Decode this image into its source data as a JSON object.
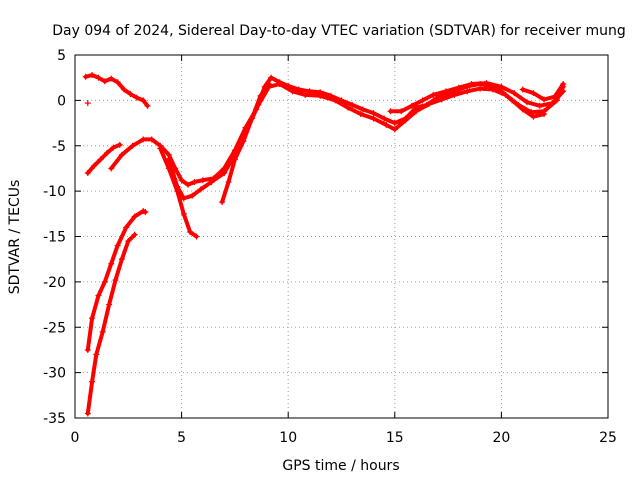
{
  "chart_data": {
    "type": "scatter",
    "title": "Day 094 of 2024, Sidereal Day-to-day VTEC variation (SDTVAR) for receiver mung",
    "xlabel": "GPS time / hours",
    "ylabel": "SDTVAR / TECUs",
    "xlim": [
      0,
      25
    ],
    "ylim": [
      -35,
      5
    ],
    "xticks": [
      0,
      5,
      10,
      15,
      20,
      25
    ],
    "yticks": [
      5,
      0,
      -5,
      -10,
      -15,
      -20,
      -25,
      -30,
      -35
    ],
    "grid": true,
    "color": "#ff0000",
    "series": [
      {
        "name": "arc-top-left",
        "points": [
          [
            0.5,
            2.6
          ],
          [
            0.8,
            2.8
          ],
          [
            1.1,
            2.5
          ],
          [
            1.4,
            2.1
          ],
          [
            1.7,
            2.4
          ],
          [
            2.0,
            2.0
          ],
          [
            2.3,
            1.2
          ],
          [
            2.6,
            0.7
          ],
          [
            2.9,
            0.3
          ],
          [
            3.2,
            0.0
          ],
          [
            3.4,
            -0.6
          ]
        ]
      },
      {
        "name": "isolated-points",
        "points": [
          [
            0.6,
            -0.3
          ]
        ]
      },
      {
        "name": "arc-left-middle",
        "points": [
          [
            0.6,
            -8.0
          ],
          [
            0.9,
            -7.2
          ],
          [
            1.2,
            -6.5
          ],
          [
            1.5,
            -5.8
          ],
          [
            1.8,
            -5.2
          ],
          [
            2.1,
            -4.9
          ]
        ]
      },
      {
        "name": "arc-left-steep-1",
        "points": [
          [
            0.6,
            -27.5
          ],
          [
            0.8,
            -24.0
          ],
          [
            1.1,
            -21.5
          ],
          [
            1.4,
            -20.0
          ],
          [
            1.7,
            -18.0
          ],
          [
            2.0,
            -16.0
          ],
          [
            2.4,
            -14.0
          ],
          [
            2.8,
            -12.8
          ],
          [
            3.2,
            -12.2
          ],
          [
            3.3,
            -12.3
          ]
        ]
      },
      {
        "name": "arc-left-steep-2",
        "points": [
          [
            0.6,
            -34.5
          ],
          [
            0.8,
            -31.0
          ],
          [
            1.0,
            -28.0
          ],
          [
            1.3,
            -25.5
          ],
          [
            1.6,
            -22.5
          ],
          [
            1.9,
            -19.8
          ],
          [
            2.2,
            -17.5
          ],
          [
            2.5,
            -15.5
          ],
          [
            2.8,
            -14.8
          ]
        ]
      },
      {
        "name": "arc-mid-main",
        "points": [
          [
            1.7,
            -7.5
          ],
          [
            2.2,
            -6.0
          ],
          [
            2.7,
            -5.0
          ],
          [
            3.2,
            -4.3
          ],
          [
            3.6,
            -4.3
          ],
          [
            4.0,
            -5.0
          ],
          [
            4.4,
            -6.0
          ],
          [
            4.7,
            -7.5
          ],
          [
            5.0,
            -8.8
          ],
          [
            5.3,
            -9.3
          ],
          [
            5.6,
            -9.0
          ],
          [
            6.0,
            -8.8
          ],
          [
            6.5,
            -8.6
          ],
          [
            7.0,
            -7.5
          ],
          [
            7.5,
            -5.5
          ],
          [
            8.0,
            -3.0
          ],
          [
            8.5,
            -1.0
          ],
          [
            8.9,
            1.5
          ],
          [
            9.2,
            2.5
          ],
          [
            9.6,
            2.0
          ],
          [
            10.0,
            1.6
          ],
          [
            10.5,
            1.2
          ],
          [
            11.0,
            1.0
          ],
          [
            11.5,
            0.9
          ],
          [
            12.0,
            0.5
          ],
          [
            12.5,
            0.0
          ],
          [
            13.0,
            -0.5
          ],
          [
            13.5,
            -1.0
          ],
          [
            14.0,
            -1.4
          ],
          [
            14.5,
            -2.0
          ],
          [
            15.0,
            -2.5
          ],
          [
            15.5,
            -2.0
          ],
          [
            16.0,
            -0.8
          ],
          [
            16.5,
            -0.5
          ],
          [
            17.0,
            0.3
          ],
          [
            17.5,
            0.7
          ],
          [
            18.0,
            1.2
          ],
          [
            18.5,
            1.6
          ],
          [
            19.0,
            1.8
          ],
          [
            19.5,
            1.6
          ],
          [
            20.0,
            1.0
          ],
          [
            20.5,
            0.0
          ],
          [
            21.0,
            -1.0
          ],
          [
            21.5,
            -1.8
          ],
          [
            22.0,
            -1.5
          ]
        ]
      },
      {
        "name": "arc-mid-second",
        "points": [
          [
            4.4,
            -6.5
          ],
          [
            4.8,
            -9.5
          ],
          [
            5.1,
            -10.8
          ],
          [
            5.5,
            -10.5
          ],
          [
            5.9,
            -9.8
          ],
          [
            6.4,
            -9.0
          ],
          [
            7.0,
            -8.0
          ],
          [
            7.5,
            -6.0
          ],
          [
            8.0,
            -3.5
          ],
          [
            8.6,
            -0.5
          ],
          [
            9.1,
            1.5
          ],
          [
            9.6,
            1.8
          ],
          [
            10.2,
            1.0
          ],
          [
            10.8,
            0.6
          ],
          [
            11.5,
            0.5
          ],
          [
            12.2,
            0.0
          ],
          [
            12.8,
            -0.8
          ],
          [
            13.4,
            -1.5
          ],
          [
            14.0,
            -2.0
          ],
          [
            14.6,
            -2.7
          ],
          [
            15.0,
            -3.2
          ],
          [
            15.5,
            -2.2
          ],
          [
            16.0,
            -1.2
          ],
          [
            16.6,
            -0.4
          ],
          [
            17.2,
            0.1
          ],
          [
            17.8,
            0.6
          ],
          [
            18.4,
            1.0
          ],
          [
            19.0,
            1.3
          ],
          [
            19.6,
            1.2
          ],
          [
            20.2,
            0.6
          ],
          [
            20.8,
            -0.5
          ],
          [
            21.4,
            -1.3
          ],
          [
            22.0,
            -1.2
          ],
          [
            22.6,
            0.0
          ],
          [
            22.9,
            1.5
          ]
        ]
      },
      {
        "name": "arc-dip-to-15",
        "points": [
          [
            4.0,
            -5.3
          ],
          [
            4.4,
            -7.5
          ],
          [
            4.8,
            -10.0
          ],
          [
            5.1,
            -12.5
          ],
          [
            5.4,
            -14.5
          ],
          [
            5.7,
            -15.0
          ]
        ]
      },
      {
        "name": "arc-seven",
        "points": [
          [
            6.9,
            -11.2
          ],
          [
            7.2,
            -9.0
          ],
          [
            7.5,
            -6.5
          ],
          [
            7.9,
            -4.5
          ],
          [
            8.3,
            -2.0
          ],
          [
            8.7,
            0.5
          ],
          [
            9.1,
            1.8
          ]
        ]
      },
      {
        "name": "arc-late",
        "points": [
          [
            14.8,
            -1.2
          ],
          [
            15.3,
            -1.2
          ],
          [
            15.8,
            -0.6
          ],
          [
            16.3,
            0.0
          ],
          [
            16.8,
            0.6
          ],
          [
            17.4,
            1.0
          ],
          [
            18.0,
            1.4
          ],
          [
            18.6,
            1.8
          ],
          [
            19.3,
            1.9
          ],
          [
            20.0,
            1.5
          ],
          [
            20.6,
            0.8
          ],
          [
            21.2,
            -0.2
          ],
          [
            21.8,
            -0.6
          ],
          [
            22.4,
            -0.3
          ],
          [
            22.9,
            1.0
          ]
        ]
      },
      {
        "name": "arc-late-2",
        "points": [
          [
            21.0,
            1.2
          ],
          [
            21.5,
            0.8
          ],
          [
            22.0,
            0.1
          ],
          [
            22.5,
            0.4
          ],
          [
            22.9,
            1.8
          ]
        ]
      }
    ]
  }
}
